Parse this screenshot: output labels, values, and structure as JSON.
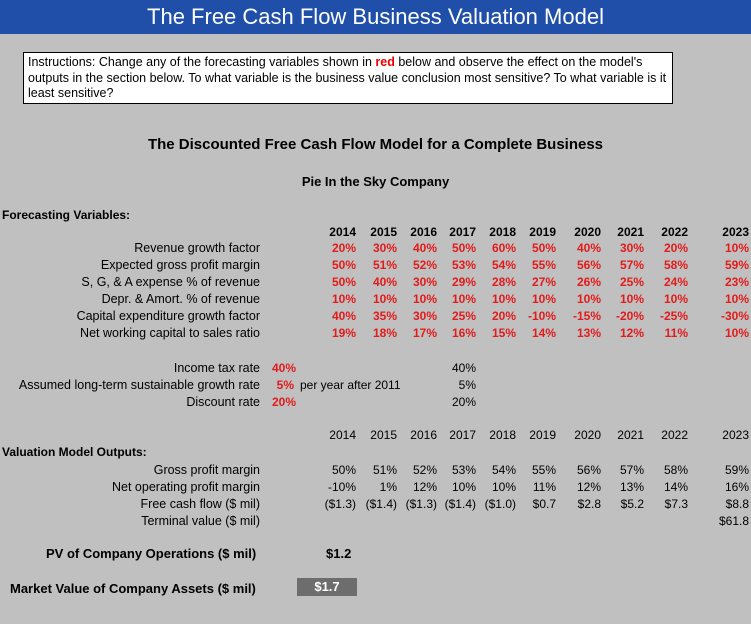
{
  "title": "The Free Cash Flow Business Valuation Model",
  "instructions": {
    "part1": "Instructions:  Change any of the forecasting variables shown in ",
    "red_word": "red",
    "part2": " below and observe the effect on the model's outputs in the section below.  To what variable is the business value conclusion most sensitive?  To what variable is it least sensitive?"
  },
  "heading": "The Discounted Free Cash Flow Model for a Complete Business",
  "company": "Pie In the Sky Company",
  "forecasting_label": "Forecasting Variables:",
  "years": [
    "2014",
    "2015",
    "2016",
    "2017",
    "2018",
    "2019",
    "2020",
    "2021",
    "2022",
    "2023"
  ],
  "forecast_rows": [
    {
      "label": "Revenue growth factor",
      "values": [
        "20%",
        "30%",
        "40%",
        "50%",
        "60%",
        "50%",
        "40%",
        "30%",
        "20%",
        "10%"
      ]
    },
    {
      "label": "Expected gross profit margin",
      "values": [
        "50%",
        "51%",
        "52%",
        "53%",
        "54%",
        "55%",
        "56%",
        "57%",
        "58%",
        "59%"
      ]
    },
    {
      "label": "S, G, & A expense % of revenue",
      "values": [
        "50%",
        "40%",
        "30%",
        "29%",
        "28%",
        "27%",
        "26%",
        "25%",
        "24%",
        "23%"
      ]
    },
    {
      "label": "Depr. & Amort. % of revenue",
      "values": [
        "10%",
        "10%",
        "10%",
        "10%",
        "10%",
        "10%",
        "10%",
        "10%",
        "10%",
        "10%"
      ]
    },
    {
      "label": "Capital expenditure growth factor",
      "values": [
        "40%",
        "35%",
        "30%",
        "25%",
        "20%",
        "-10%",
        "-15%",
        "-20%",
        "-25%",
        "-30%"
      ]
    },
    {
      "label": "Net working capital to sales ratio",
      "values": [
        "19%",
        "18%",
        "17%",
        "16%",
        "15%",
        "14%",
        "13%",
        "12%",
        "11%",
        "10%"
      ]
    }
  ],
  "assumptions": [
    {
      "label": "Income tax rate",
      "value": "40%",
      "note": "",
      "echo": "40%"
    },
    {
      "label": "Assumed long-term sustainable growth rate",
      "value": "5%",
      "note": "per year after 2011",
      "echo": "5%"
    },
    {
      "label": "Discount rate",
      "value": "20%",
      "note": "",
      "echo": "20%"
    }
  ],
  "outputs_label": "Valuation Model Outputs:",
  "output_rows": [
    {
      "label": "Gross profit margin",
      "values": [
        "50%",
        "51%",
        "52%",
        "53%",
        "54%",
        "55%",
        "56%",
        "57%",
        "58%",
        "59%"
      ]
    },
    {
      "label": "Net operating profit margin",
      "values": [
        "-10%",
        "1%",
        "12%",
        "10%",
        "10%",
        "11%",
        "12%",
        "13%",
        "14%",
        "16%"
      ]
    },
    {
      "label": "Free cash flow ($ mil)",
      "values": [
        "($1.3)",
        "($1.4)",
        "($1.3)",
        "($1.4)",
        "($1.0)",
        "$0.7",
        "$2.8",
        "$5.2",
        "$7.3",
        "$8.8"
      ]
    },
    {
      "label": "Terminal value ($ mil)",
      "values": [
        "",
        "",
        "",
        "",
        "",
        "",
        "",
        "",
        "",
        "$61.8"
      ]
    }
  ],
  "pv_label": "PV of Company Operations ($ mil)",
  "pv_value": "$1.2",
  "mv_label": "Market Value of Company Assets ($ mil)",
  "mv_value": "$1.7"
}
